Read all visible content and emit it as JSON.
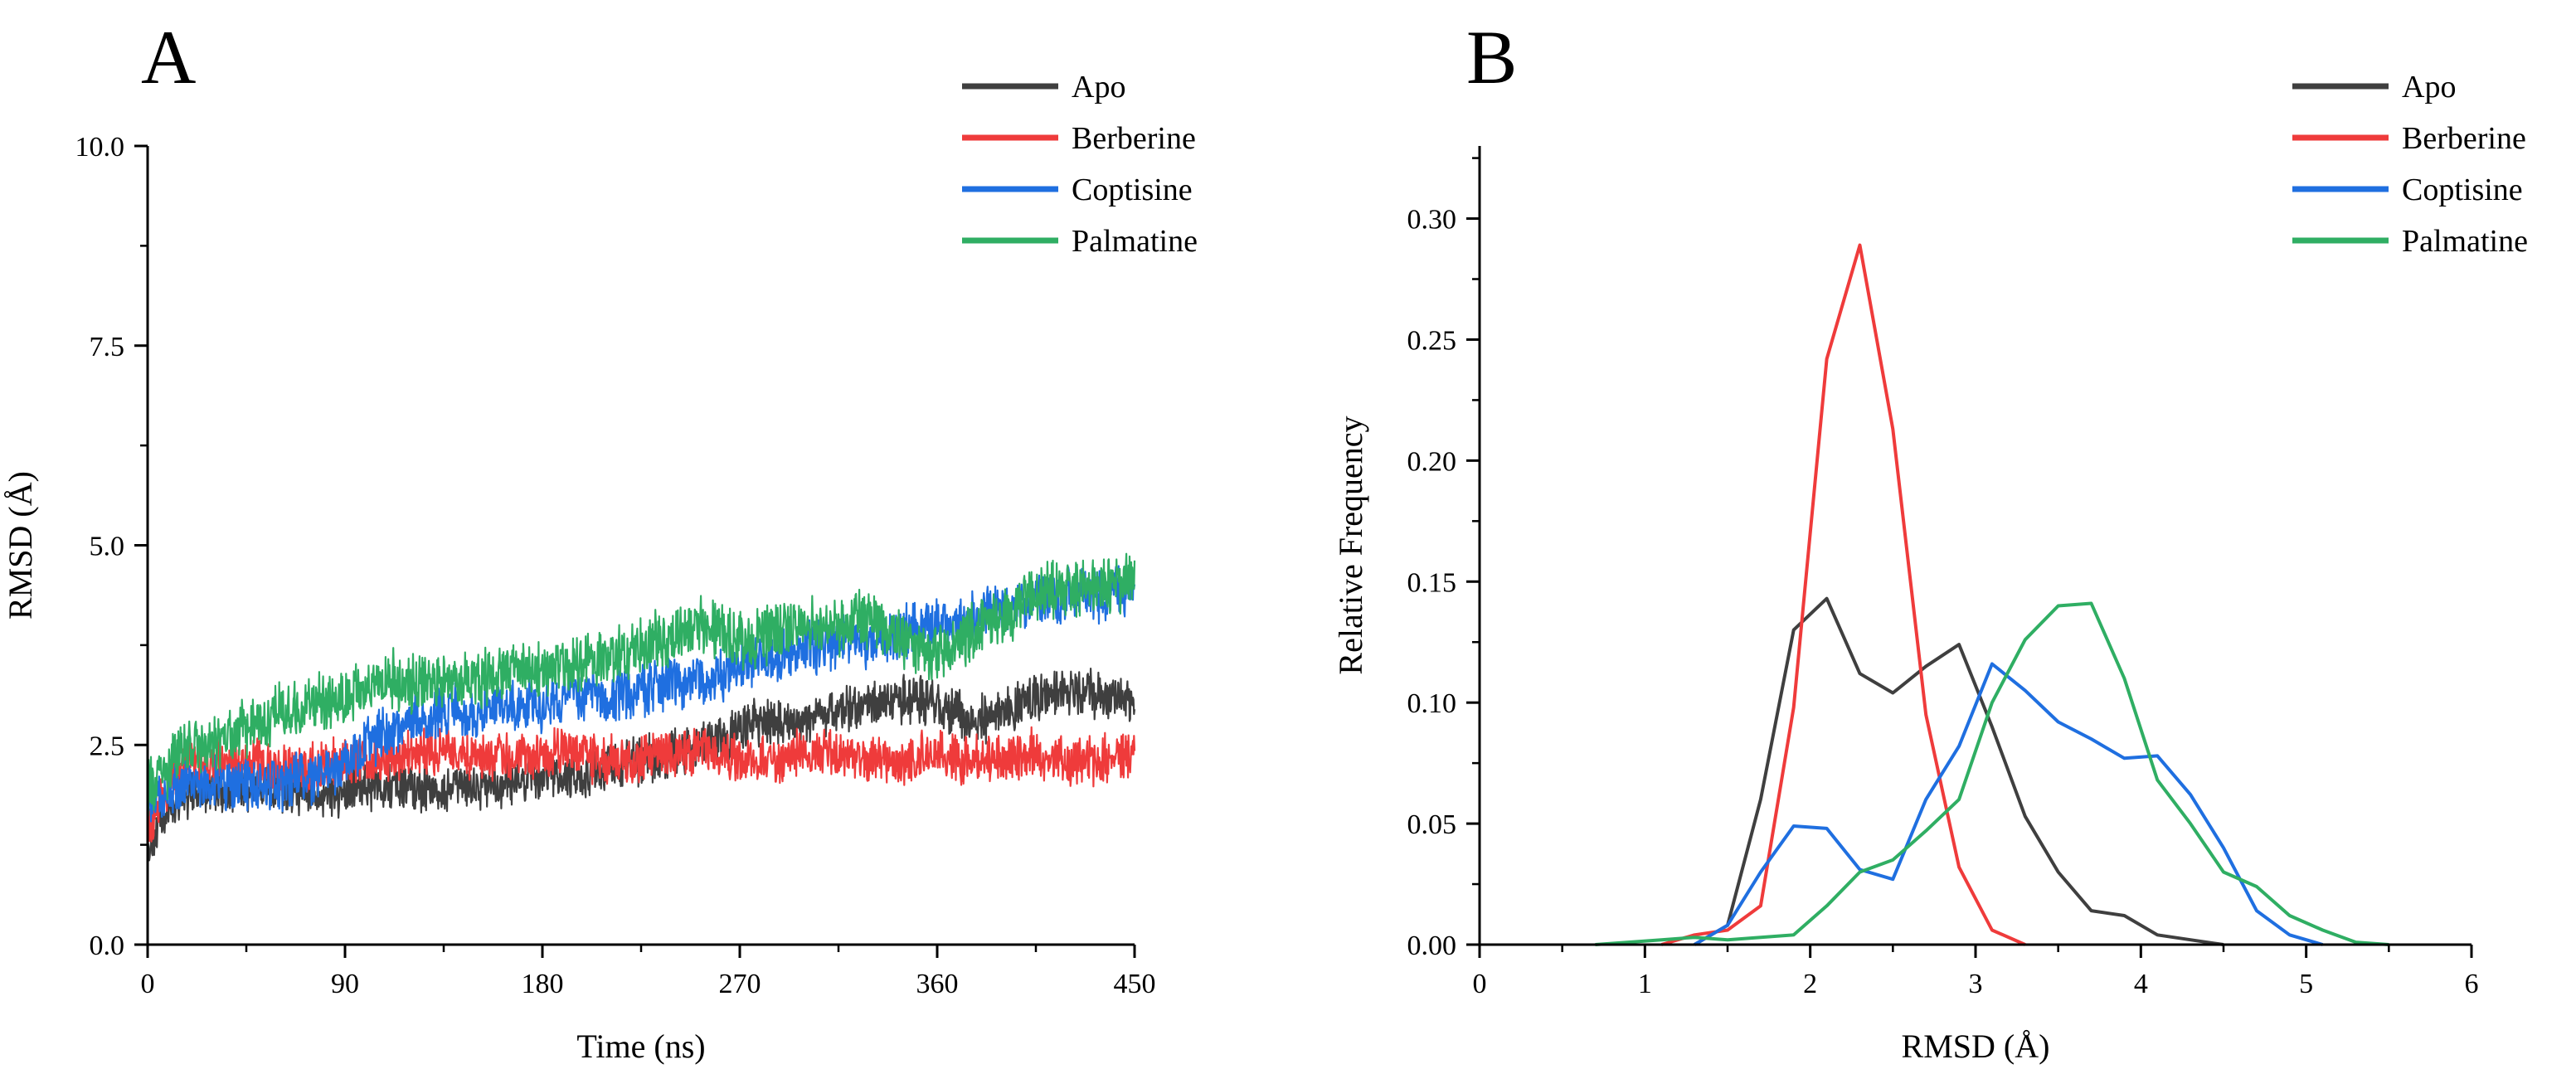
{
  "panels": [
    {
      "letter": "A"
    },
    {
      "letter": "B"
    }
  ],
  "legend": [
    "Apo",
    "Berberine",
    "Coptisine",
    "Palmatine"
  ],
  "colors": {
    "Apo": "#3f3f3f",
    "Berberine": "#ef3b3b",
    "Coptisine": "#1f6fe0",
    "Palmatine": "#2fae63"
  },
  "chart_data": [
    {
      "type": "line",
      "panel": "A",
      "xlabel": "Time (ns)",
      "ylabel": "RMSD (Å)",
      "xlim": [
        0,
        450
      ],
      "ylim": [
        0,
        10
      ],
      "xticks": [
        "0",
        "90",
        "180",
        "270",
        "360",
        "450"
      ],
      "yticks": [
        "0.0",
        "2.5",
        "5.0",
        "7.5",
        "10.0"
      ],
      "x": [
        0,
        15,
        30,
        45,
        60,
        75,
        90,
        105,
        120,
        135,
        150,
        165,
        180,
        195,
        210,
        225,
        240,
        255,
        270,
        285,
        300,
        315,
        330,
        345,
        360,
        375,
        390,
        405,
        420,
        435,
        450
      ],
      "series": [
        {
          "name": "Apo",
          "noise": 0.25,
          "values": [
            1.2,
            1.9,
            1.9,
            2.0,
            1.9,
            1.9,
            1.9,
            2.0,
            2.0,
            1.9,
            2.0,
            2.0,
            2.1,
            2.1,
            2.2,
            2.3,
            2.4,
            2.5,
            2.7,
            2.8,
            2.8,
            2.9,
            3.0,
            3.1,
            3.0,
            2.8,
            2.9,
            3.1,
            3.2,
            3.1,
            3.0
          ]
        },
        {
          "name": "Berberine",
          "noise": 0.25,
          "values": [
            1.4,
            2.3,
            2.3,
            2.3,
            2.2,
            2.2,
            2.3,
            2.3,
            2.4,
            2.4,
            2.3,
            2.3,
            2.4,
            2.4,
            2.3,
            2.3,
            2.4,
            2.4,
            2.3,
            2.3,
            2.4,
            2.4,
            2.3,
            2.3,
            2.4,
            2.3,
            2.3,
            2.4,
            2.3,
            2.3,
            2.4
          ]
        },
        {
          "name": "Coptisine",
          "noise": 0.28,
          "values": [
            1.8,
            2.0,
            2.0,
            2.0,
            2.0,
            2.1,
            2.3,
            2.6,
            2.8,
            2.9,
            2.9,
            3.0,
            3.0,
            3.1,
            3.1,
            3.2,
            3.3,
            3.3,
            3.5,
            3.6,
            3.7,
            3.8,
            3.8,
            3.9,
            4.0,
            4.1,
            4.2,
            4.3,
            4.4,
            4.4,
            4.4
          ]
        },
        {
          "name": "Palmatine",
          "noise": 0.3,
          "values": [
            1.9,
            2.4,
            2.5,
            2.7,
            2.9,
            3.0,
            3.1,
            3.3,
            3.3,
            3.3,
            3.3,
            3.4,
            3.4,
            3.5,
            3.6,
            3.7,
            3.9,
            4.0,
            3.8,
            3.9,
            4.0,
            4.0,
            4.1,
            3.8,
            3.6,
            3.9,
            4.1,
            4.4,
            4.5,
            4.5,
            4.6
          ]
        }
      ]
    },
    {
      "type": "line",
      "panel": "B",
      "xlabel": "RMSD (Å)",
      "ylabel": "Relative Frequency",
      "xlim": [
        0,
        6
      ],
      "ylim": [
        0,
        0.33
      ],
      "xticks": [
        "0",
        "1",
        "2",
        "3",
        "4",
        "5",
        "6"
      ],
      "yticks": [
        "0.00",
        "0.05",
        "0.10",
        "0.15",
        "0.20",
        "0.25",
        "0.30"
      ],
      "series": [
        {
          "name": "Apo",
          "x": [
            1.3,
            1.5,
            1.7,
            1.9,
            2.1,
            2.3,
            2.5,
            2.7,
            2.9,
            3.1,
            3.3,
            3.5,
            3.7,
            3.9,
            4.1,
            4.3,
            4.5
          ],
          "values": [
            0.0,
            0.008,
            0.06,
            0.13,
            0.143,
            0.112,
            0.104,
            0.115,
            0.124,
            0.09,
            0.053,
            0.03,
            0.014,
            0.012,
            0.004,
            0.002,
            0.0
          ]
        },
        {
          "name": "Berberine",
          "x": [
            1.1,
            1.3,
            1.5,
            1.7,
            1.9,
            2.1,
            2.3,
            2.5,
            2.7,
            2.9,
            3.1,
            3.3
          ],
          "values": [
            0.0,
            0.004,
            0.006,
            0.016,
            0.098,
            0.242,
            0.289,
            0.213,
            0.095,
            0.032,
            0.006,
            0.0
          ]
        },
        {
          "name": "Coptisine",
          "x": [
            1.3,
            1.5,
            1.7,
            1.9,
            2.1,
            2.3,
            2.5,
            2.7,
            2.9,
            3.1,
            3.3,
            3.5,
            3.7,
            3.9,
            4.1,
            4.3,
            4.5,
            4.7,
            4.9,
            5.1
          ],
          "values": [
            0.0,
            0.008,
            0.03,
            0.049,
            0.048,
            0.031,
            0.027,
            0.06,
            0.082,
            0.116,
            0.105,
            0.092,
            0.085,
            0.077,
            0.078,
            0.062,
            0.04,
            0.014,
            0.004,
            0.0
          ]
        },
        {
          "name": "Palmatine",
          "x": [
            0.7,
            0.9,
            1.1,
            1.3,
            1.5,
            1.7,
            1.9,
            2.1,
            2.3,
            2.5,
            2.7,
            2.9,
            3.1,
            3.3,
            3.5,
            3.7,
            3.9,
            4.1,
            4.3,
            4.5,
            4.7,
            4.9,
            5.1,
            5.3,
            5.5
          ],
          "values": [
            0.0,
            0.001,
            0.002,
            0.003,
            0.002,
            0.003,
            0.004,
            0.016,
            0.03,
            0.035,
            0.047,
            0.06,
            0.1,
            0.126,
            0.14,
            0.141,
            0.11,
            0.068,
            0.05,
            0.03,
            0.024,
            0.012,
            0.006,
            0.001,
            0.0
          ]
        }
      ]
    }
  ]
}
